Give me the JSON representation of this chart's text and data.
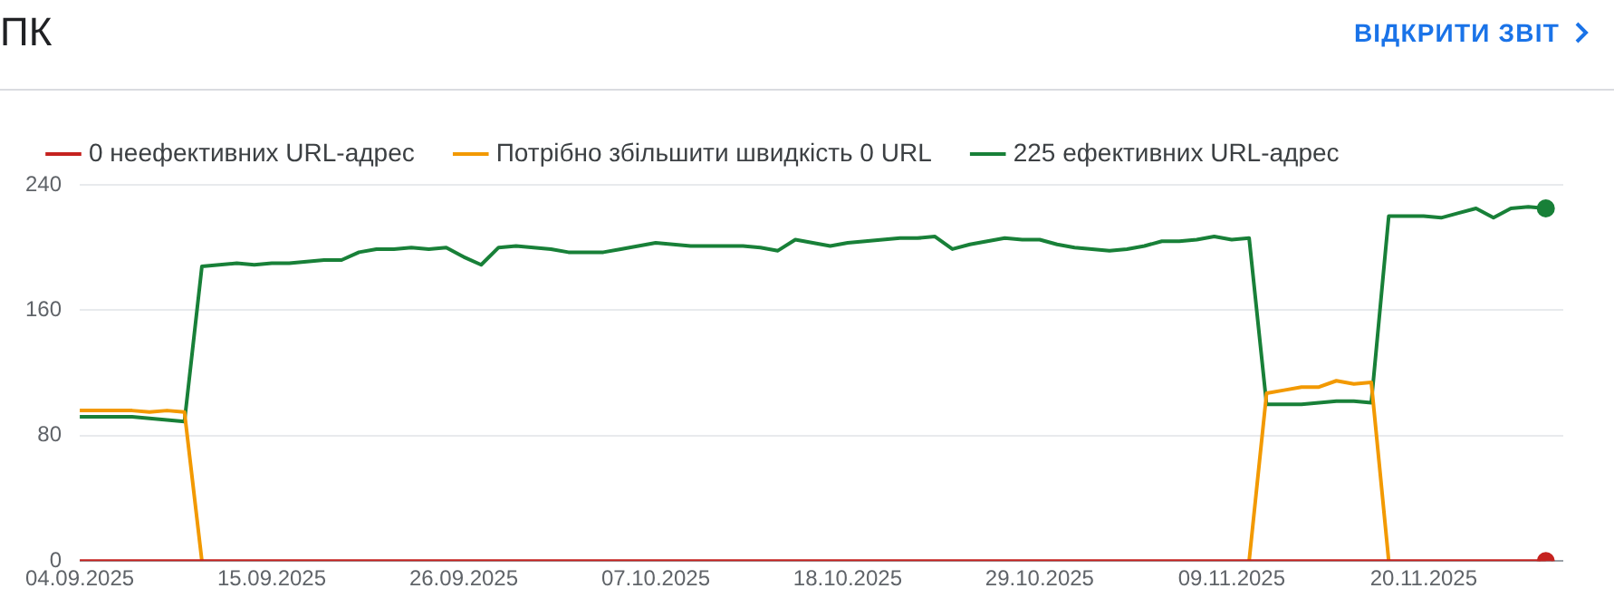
{
  "chart_data": {
    "type": "line",
    "title": "ПК",
    "annotations": [
      "ВІДКРИТИ ЗВІТ"
    ],
    "x": [
      "2025-09-04",
      "2025-09-05",
      "2025-09-06",
      "2025-09-07",
      "2025-09-08",
      "2025-09-09",
      "2025-09-10",
      "2025-09-11",
      "2025-09-12",
      "2025-09-13",
      "2025-09-14",
      "2025-09-15",
      "2025-09-16",
      "2025-09-17",
      "2025-09-18",
      "2025-09-19",
      "2025-09-20",
      "2025-09-21",
      "2025-09-22",
      "2025-09-23",
      "2025-09-24",
      "2025-09-25",
      "2025-09-26",
      "2025-09-27",
      "2025-09-28",
      "2025-09-29",
      "2025-09-30",
      "2025-10-01",
      "2025-10-02",
      "2025-10-03",
      "2025-10-04",
      "2025-10-05",
      "2025-10-06",
      "2025-10-07",
      "2025-10-08",
      "2025-10-09",
      "2025-10-10",
      "2025-10-11",
      "2025-10-12",
      "2025-10-13",
      "2025-10-14",
      "2025-10-15",
      "2025-10-16",
      "2025-10-17",
      "2025-10-18",
      "2025-10-19",
      "2025-10-20",
      "2025-10-21",
      "2025-10-22",
      "2025-10-23",
      "2025-10-24",
      "2025-10-25",
      "2025-10-26",
      "2025-10-27",
      "2025-10-28",
      "2025-10-29",
      "2025-10-30",
      "2025-10-31",
      "2025-11-01",
      "2025-11-02",
      "2025-11-03",
      "2025-11-04",
      "2025-11-05",
      "2025-11-06",
      "2025-11-07",
      "2025-11-08",
      "2025-11-09",
      "2025-11-10",
      "2025-11-11",
      "2025-11-12",
      "2025-11-13",
      "2025-11-14",
      "2025-11-15",
      "2025-11-16",
      "2025-11-17",
      "2025-11-18",
      "2025-11-19",
      "2025-11-20",
      "2025-11-21",
      "2025-11-22",
      "2025-11-23",
      "2025-11-24",
      "2025-11-25",
      "2025-11-26",
      "2025-11-27"
    ],
    "series": [
      {
        "name": "0 неефективних URL-адрес",
        "color": "#c5221f",
        "values": [
          0,
          0,
          0,
          0,
          0,
          0,
          0,
          0,
          0,
          0,
          0,
          0,
          0,
          0,
          0,
          0,
          0,
          0,
          0,
          0,
          0,
          0,
          0,
          0,
          0,
          0,
          0,
          0,
          0,
          0,
          0,
          0,
          0,
          0,
          0,
          0,
          0,
          0,
          0,
          0,
          0,
          0,
          0,
          0,
          0,
          0,
          0,
          0,
          0,
          0,
          0,
          0,
          0,
          0,
          0,
          0,
          0,
          0,
          0,
          0,
          0,
          0,
          0,
          0,
          0,
          0,
          0,
          0,
          0,
          0,
          0,
          0,
          0,
          0,
          0,
          0,
          0,
          0,
          0,
          0,
          0,
          0,
          0,
          0,
          0
        ]
      },
      {
        "name": "Потрібно збільшити швидкість 0 URL",
        "color": "#f29900",
        "values": [
          96,
          96,
          96,
          96,
          95,
          96,
          95,
          0,
          null,
          null,
          null,
          null,
          null,
          null,
          null,
          null,
          null,
          null,
          null,
          null,
          null,
          null,
          null,
          null,
          null,
          null,
          null,
          null,
          null,
          null,
          null,
          null,
          null,
          null,
          null,
          null,
          null,
          null,
          null,
          null,
          null,
          null,
          null,
          null,
          null,
          null,
          null,
          null,
          null,
          null,
          null,
          null,
          null,
          null,
          null,
          null,
          null,
          null,
          null,
          null,
          null,
          null,
          null,
          null,
          null,
          null,
          null,
          0,
          107,
          109,
          111,
          111,
          115,
          113,
          114,
          0,
          null,
          null,
          null,
          null,
          null,
          null,
          null,
          null,
          null
        ]
      },
      {
        "name": "225 ефективних URL-адрес",
        "color": "#188038",
        "values": [
          92,
          92,
          92,
          92,
          91,
          90,
          89,
          188,
          189,
          190,
          189,
          190,
          190,
          191,
          192,
          192,
          197,
          199,
          199,
          200,
          199,
          200,
          194,
          189,
          200,
          201,
          200,
          199,
          197,
          197,
          197,
          199,
          201,
          203,
          202,
          201,
          201,
          201,
          201,
          200,
          198,
          205,
          203,
          201,
          203,
          204,
          205,
          206,
          206,
          207,
          199,
          202,
          204,
          206,
          205,
          205,
          202,
          200,
          199,
          198,
          199,
          201,
          204,
          204,
          205,
          207,
          205,
          206,
          100,
          100,
          100,
          101,
          102,
          102,
          101,
          220,
          220,
          220,
          219,
          222,
          225,
          219,
          225,
          226,
          225
        ]
      }
    ],
    "xlim": [
      "2025-09-04",
      "2025-11-28"
    ],
    "xticks": [
      {
        "value": "2025-09-04",
        "label": "04.09.2025"
      },
      {
        "value": "2025-09-15",
        "label": "15.09.2025"
      },
      {
        "value": "2025-09-26",
        "label": "26.09.2025"
      },
      {
        "value": "2025-10-07",
        "label": "07.10.2025"
      },
      {
        "value": "2025-10-18",
        "label": "18.10.2025"
      },
      {
        "value": "2025-10-29",
        "label": "29.10.2025"
      },
      {
        "value": "2025-11-09",
        "label": "09.11.2025"
      },
      {
        "value": "2025-11-20",
        "label": "20.11.2025"
      }
    ],
    "ylim": [
      0,
      240
    ],
    "yticks": [
      0,
      80,
      160,
      240
    ],
    "grid": "y",
    "legend": "top left",
    "line_style": "solid"
  }
}
